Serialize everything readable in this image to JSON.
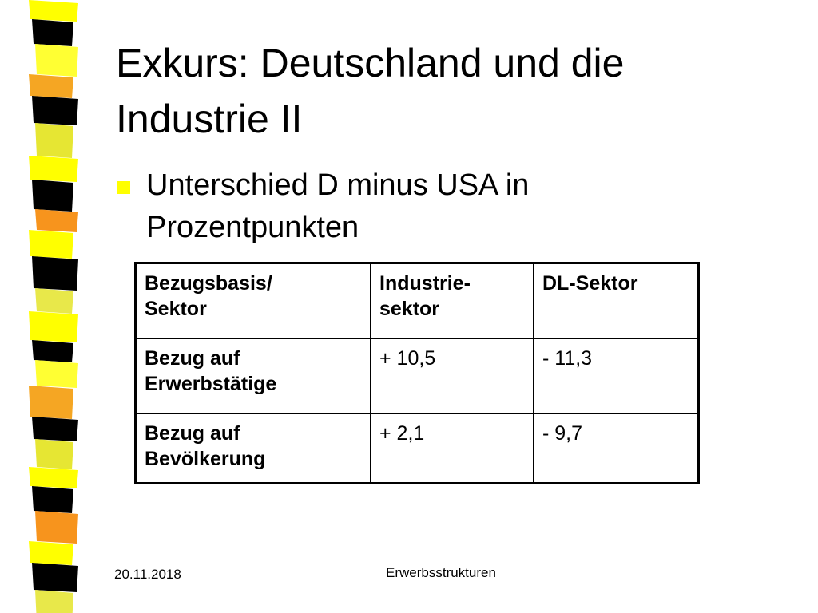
{
  "header": {
    "title": "Exkurs: Deutschland und die Industrie II"
  },
  "bullets": [
    "Unterschied D minus USA in Prozentpunkten"
  ],
  "table": {
    "header": [
      "Bezugsbasis/\nSektor",
      "Industrie-\nsektor",
      "DL-Sektor"
    ],
    "rows": [
      [
        "Bezug auf\nErwerbstätige",
        "+ 10,5",
        "- 11,3"
      ],
      [
        "Bezug auf\nBevölkerung",
        "+ 2,1",
        "- 9,7"
      ]
    ]
  },
  "footer": {
    "date": "20.11.2018",
    "center": "Erwerbsstrukturen"
  }
}
